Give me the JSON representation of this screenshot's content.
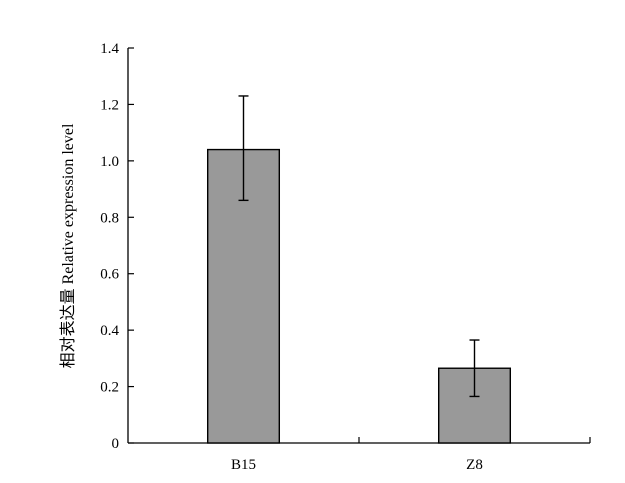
{
  "chart_data": {
    "type": "bar",
    "categories": [
      "B15",
      "Z8"
    ],
    "values": [
      1.04,
      0.265
    ],
    "error_low": [
      0.86,
      0.165
    ],
    "error_high": [
      1.23,
      0.365
    ],
    "ylabel": "相对表达量 Relative expression level",
    "xlabel": "",
    "ylim": [
      0,
      1.4
    ],
    "yticks": [
      0,
      0.2,
      0.4,
      0.6,
      0.8,
      1.0,
      1.2,
      1.4
    ],
    "ytick_labels": [
      "0",
      "0.2",
      "0.4",
      "0.6",
      "0.8",
      "1.0",
      "1.2",
      "1.4"
    ],
    "bar_color": "#999999",
    "grid": false,
    "legend": "none"
  }
}
